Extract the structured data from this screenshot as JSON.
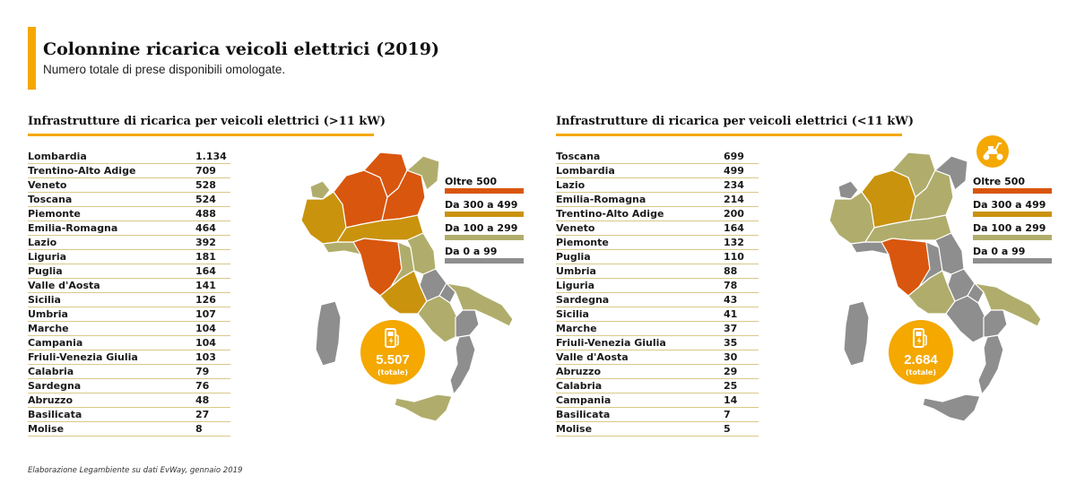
{
  "header": {
    "title": "Colonnine ricarica veicoli elettrici (2019)",
    "subtitle": "Numero totale di prese disponibili omologate."
  },
  "colors": {
    "accent": "#f4a800",
    "oltre_500": "#d9560e",
    "da_300_a_499": "#c9930e",
    "da_100_a_299": "#b0ad6c",
    "da_0_a_99": "#8e8e8e"
  },
  "legend": [
    {
      "label": "Oltre 500",
      "color": "#d9560e"
    },
    {
      "label": "Da 300 a 499",
      "color": "#c9930e"
    },
    {
      "label": "Da 100 a 299",
      "color": "#b0ad6c"
    },
    {
      "label": "Da 0 a 99",
      "color": "#8e8e8e"
    }
  ],
  "panels": [
    {
      "heading": "Infrastrutture di ricarica per veicoli elettrici (>11 kW)",
      "total_value": "5.507",
      "total_label": "(totale)",
      "rows": [
        {
          "name": "Lombardia",
          "value": "1.134"
        },
        {
          "name": "Trentino-Alto Adige",
          "value": "709"
        },
        {
          "name": "Veneto",
          "value": "528"
        },
        {
          "name": "Toscana",
          "value": "524"
        },
        {
          "name": "Piemonte",
          "value": "488"
        },
        {
          "name": "Emilia-Romagna",
          "value": "464"
        },
        {
          "name": "Lazio",
          "value": "392"
        },
        {
          "name": "Liguria",
          "value": "181"
        },
        {
          "name": "Puglia",
          "value": "164"
        },
        {
          "name": "Valle d'Aosta",
          "value": "141"
        },
        {
          "name": "Sicilia",
          "value": "126"
        },
        {
          "name": "Umbria",
          "value": "107"
        },
        {
          "name": "Marche",
          "value": "104"
        },
        {
          "name": "Campania",
          "value": "104"
        },
        {
          "name": "Friuli-Venezia Giulia",
          "value": "103"
        },
        {
          "name": "Calabria",
          "value": "79"
        },
        {
          "name": "Sardegna",
          "value": "76"
        },
        {
          "name": "Abruzzo",
          "value": "48"
        },
        {
          "name": "Basilicata",
          "value": "27"
        },
        {
          "name": "Molise",
          "value": "8"
        }
      ]
    },
    {
      "heading": "Infrastrutture di ricarica per veicoli elettrici (<11 kW)",
      "total_value": "2.684",
      "total_label": "(totale)",
      "scooter_icon": "scooter-icon",
      "rows": [
        {
          "name": "Toscana",
          "value": "699"
        },
        {
          "name": "Lombardia",
          "value": "499"
        },
        {
          "name": "Lazio",
          "value": "234"
        },
        {
          "name": "Emilia-Romagna",
          "value": "214"
        },
        {
          "name": "Trentino-Alto Adige",
          "value": "200"
        },
        {
          "name": "Veneto",
          "value": "164"
        },
        {
          "name": "Piemonte",
          "value": "132"
        },
        {
          "name": "Puglia",
          "value": "110"
        },
        {
          "name": "Umbria",
          "value": "88"
        },
        {
          "name": "Liguria",
          "value": "78"
        },
        {
          "name": "Sardegna",
          "value": "43"
        },
        {
          "name": "Sicilia",
          "value": "41"
        },
        {
          "name": "Marche",
          "value": "37"
        },
        {
          "name": "Friuli-Venezia Giulia",
          "value": "35"
        },
        {
          "name": "Valle d'Aosta",
          "value": "30"
        },
        {
          "name": "Abruzzo",
          "value": "29"
        },
        {
          "name": "Calabria",
          "value": "25"
        },
        {
          "name": "Campania",
          "value": "14"
        },
        {
          "name": "Basilicata",
          "value": "7"
        },
        {
          "name": "Molise",
          "value": "5"
        }
      ]
    }
  ],
  "footnote": "Elaborazione Legambiente su dati EvWay, gennaio 2019",
  "chart_data": [
    {
      "type": "table",
      "title": "Infrastrutture di ricarica per veicoli elettrici (>11 kW)",
      "categories": [
        "Lombardia",
        "Trentino-Alto Adige",
        "Veneto",
        "Toscana",
        "Piemonte",
        "Emilia-Romagna",
        "Lazio",
        "Liguria",
        "Puglia",
        "Valle d'Aosta",
        "Sicilia",
        "Umbria",
        "Marche",
        "Campania",
        "Friuli-Venezia Giulia",
        "Calabria",
        "Sardegna",
        "Abruzzo",
        "Basilicata",
        "Molise"
      ],
      "values": [
        1134,
        709,
        528,
        524,
        488,
        464,
        392,
        181,
        164,
        141,
        126,
        107,
        104,
        104,
        103,
        79,
        76,
        48,
        27,
        8
      ],
      "total": 5507
    },
    {
      "type": "table",
      "title": "Infrastrutture di ricarica per veicoli elettrici (<11 kW)",
      "categories": [
        "Toscana",
        "Lombardia",
        "Lazio",
        "Emilia-Romagna",
        "Trentino-Alto Adige",
        "Veneto",
        "Piemonte",
        "Puglia",
        "Umbria",
        "Liguria",
        "Sardegna",
        "Sicilia",
        "Marche",
        "Friuli-Venezia Giulia",
        "Valle d'Aosta",
        "Abruzzo",
        "Calabria",
        "Campania",
        "Basilicata",
        "Molise"
      ],
      "values": [
        699,
        499,
        234,
        214,
        200,
        164,
        132,
        110,
        88,
        78,
        43,
        41,
        37,
        35,
        30,
        29,
        25,
        14,
        7,
        5
      ],
      "total": 2684
    }
  ]
}
